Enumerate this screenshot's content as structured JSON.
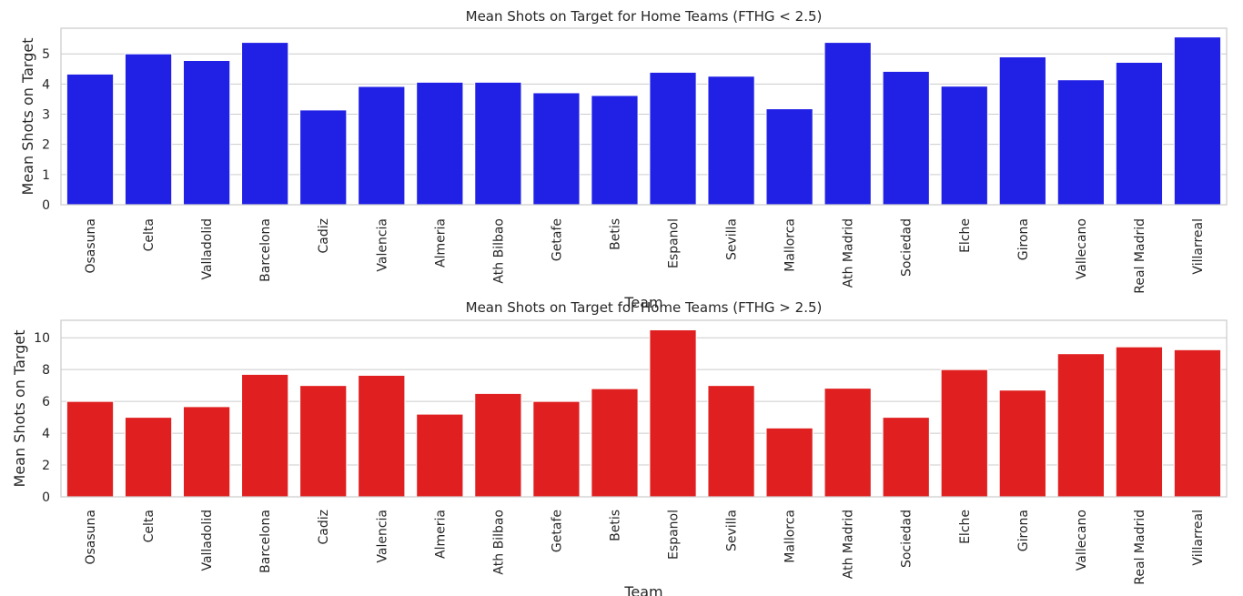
{
  "chart_data": [
    {
      "type": "bar",
      "title": "Mean Shots on Target for Home Teams (FTHG < 2.5)",
      "xlabel": "Team",
      "ylabel": "Mean Shots on Target",
      "color": "#2121e6",
      "grid": true,
      "ylim": [
        0,
        5.85
      ],
      "yticks": [
        0,
        1,
        2,
        3,
        4,
        5
      ],
      "categories": [
        "Osasuna",
        "Celta",
        "Valladolid",
        "Barcelona",
        "Cadiz",
        "Valencia",
        "Almeria",
        "Ath Bilbao",
        "Getafe",
        "Betis",
        "Espanol",
        "Sevilla",
        "Mallorca",
        "Ath Madrid",
        "Sociedad",
        "Elche",
        "Girona",
        "Vallecano",
        "Real Madrid",
        "Villarreal"
      ],
      "values": [
        4.33,
        5.0,
        4.78,
        5.38,
        3.14,
        3.92,
        4.06,
        4.06,
        3.71,
        3.62,
        4.39,
        4.26,
        3.18,
        5.38,
        4.42,
        3.93,
        4.9,
        4.14,
        4.72,
        5.56
      ]
    },
    {
      "type": "bar",
      "title": "Mean Shots on Target for Home Teams (FTHG > 2.5)",
      "xlabel": "Team",
      "ylabel": "Mean Shots on Target",
      "color": "#e02020",
      "grid": true,
      "ylim": [
        0,
        11.1
      ],
      "yticks": [
        0,
        2,
        4,
        6,
        8,
        10
      ],
      "categories": [
        "Osasuna",
        "Celta",
        "Valladolid",
        "Barcelona",
        "Cadiz",
        "Valencia",
        "Almeria",
        "Ath Bilbao",
        "Getafe",
        "Betis",
        "Espanol",
        "Sevilla",
        "Mallorca",
        "Ath Madrid",
        "Sociedad",
        "Elche",
        "Girona",
        "Vallecano",
        "Real Madrid",
        "Villarreal"
      ],
      "values": [
        6.0,
        5.0,
        5.67,
        7.7,
        7.0,
        7.64,
        5.2,
        6.5,
        6.0,
        6.8,
        10.5,
        7.0,
        4.33,
        6.83,
        5.0,
        8.0,
        6.71,
        9.0,
        9.43,
        9.25
      ]
    }
  ]
}
